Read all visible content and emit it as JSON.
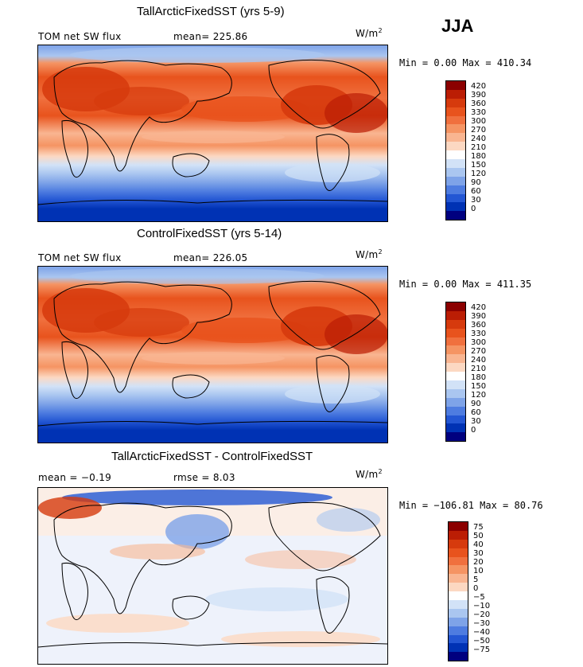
{
  "season": "JJA",
  "panels": [
    {
      "title": "TallArcticFixedSST (yrs 5-9)",
      "left_label": "TOM net SW flux",
      "mean_text": "mean= 225.86",
      "rmse_text": "",
      "units_base": "W/m",
      "units_exp": "2",
      "minmax": "Min =   0.00 Max = 410.34",
      "levels": [
        "420",
        "390",
        "360",
        "330",
        "300",
        "270",
        "240",
        "210",
        "180",
        "150",
        "120",
        "90",
        "60",
        "30",
        "0"
      ],
      "colors": [
        "#8b0000",
        "#bb1d04",
        "#d63a0d",
        "#e8531d",
        "#f0703e",
        "#f59463",
        "#f9b591",
        "#fcd8c2",
        "#ffffff",
        "#d2e2f7",
        "#aac6f0",
        "#7ea3e8",
        "#4e7ce0",
        "#2356d3",
        "#0032b4",
        "#00007f"
      ]
    },
    {
      "title": "ControlFixedSST (yrs 5-14)",
      "left_label": "TOM net SW flux",
      "mean_text": "mean= 226.05",
      "rmse_text": "",
      "units_base": "W/m",
      "units_exp": "2",
      "minmax": "Min =   0.00 Max = 411.35",
      "levels": [
        "420",
        "390",
        "360",
        "330",
        "300",
        "270",
        "240",
        "210",
        "180",
        "150",
        "120",
        "90",
        "60",
        "30",
        "0"
      ],
      "colors": [
        "#8b0000",
        "#bb1d04",
        "#d63a0d",
        "#e8531d",
        "#f0703e",
        "#f59463",
        "#f9b591",
        "#fcd8c2",
        "#ffffff",
        "#d2e2f7",
        "#aac6f0",
        "#7ea3e8",
        "#4e7ce0",
        "#2356d3",
        "#0032b4",
        "#00007f"
      ]
    },
    {
      "title": "TallArcticFixedSST - ControlFixedSST",
      "left_label": "mean =  −0.19",
      "mean_text": "",
      "rmse_text": "rmse =   8.03",
      "units_base": "W/m",
      "units_exp": "2",
      "minmax": "Min = −106.81 Max =  80.76",
      "levels": [
        "75",
        "50",
        "40",
        "30",
        "20",
        "10",
        "5",
        "0",
        "−5",
        "−10",
        "−20",
        "−30",
        "−40",
        "−50",
        "−75"
      ],
      "colors": [
        "#8b0000",
        "#bb1d04",
        "#d63a0d",
        "#e8531d",
        "#f0703e",
        "#f59463",
        "#f9b591",
        "#fcd8c2",
        "#ffffff",
        "#d2e2f7",
        "#aac6f0",
        "#7ea3e8",
        "#4e7ce0",
        "#2356d3",
        "#0032b4",
        "#00007f"
      ]
    }
  ]
}
